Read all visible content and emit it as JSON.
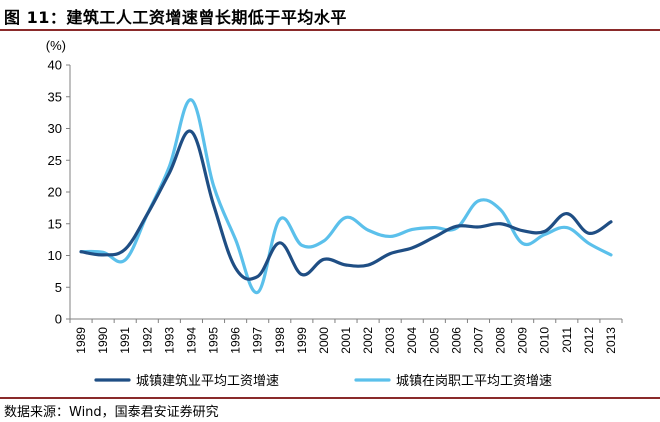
{
  "title": "图 11：建筑工人工资增速曾长期低于平均水平",
  "source": "数据来源：Wind，国泰君安证券研究",
  "chart_data": {
    "type": "line",
    "title": "",
    "ylabel": "(%)",
    "xlabel": "",
    "ylim": [
      0,
      40
    ],
    "yticks": [
      0,
      5,
      10,
      15,
      20,
      25,
      30,
      35,
      40
    ],
    "categories": [
      "1989",
      "1990",
      "1991",
      "1992",
      "1993",
      "1994",
      "1995",
      "1996",
      "1997",
      "1998",
      "1999",
      "2000",
      "2001",
      "2002",
      "2003",
      "2004",
      "2005",
      "2006",
      "2007",
      "2008",
      "2009",
      "2010",
      "2011",
      "2012",
      "2013"
    ],
    "legend_position": "bottom",
    "grid": false,
    "series": [
      {
        "name": "城镇建筑业平均工资增速",
        "color": "#1f4e84",
        "values": [
          10.6,
          10.1,
          11.0,
          16.5,
          23.0,
          29.5,
          18.0,
          8.0,
          6.7,
          12.0,
          7.0,
          9.4,
          8.5,
          8.5,
          10.3,
          11.2,
          12.9,
          14.6,
          14.5,
          15.0,
          13.9,
          13.8,
          16.6,
          13.5,
          15.3
        ]
      },
      {
        "name": "城镇在岗职工平均工资增速",
        "color": "#5bc0eb",
        "values": [
          10.6,
          10.5,
          9.3,
          16.5,
          24.0,
          34.5,
          21.0,
          12.5,
          4.2,
          15.7,
          11.6,
          12.3,
          16.0,
          14.0,
          13.0,
          14.1,
          14.4,
          14.3,
          18.6,
          17.2,
          11.9,
          13.3,
          14.4,
          11.9,
          10.1
        ]
      }
    ]
  }
}
